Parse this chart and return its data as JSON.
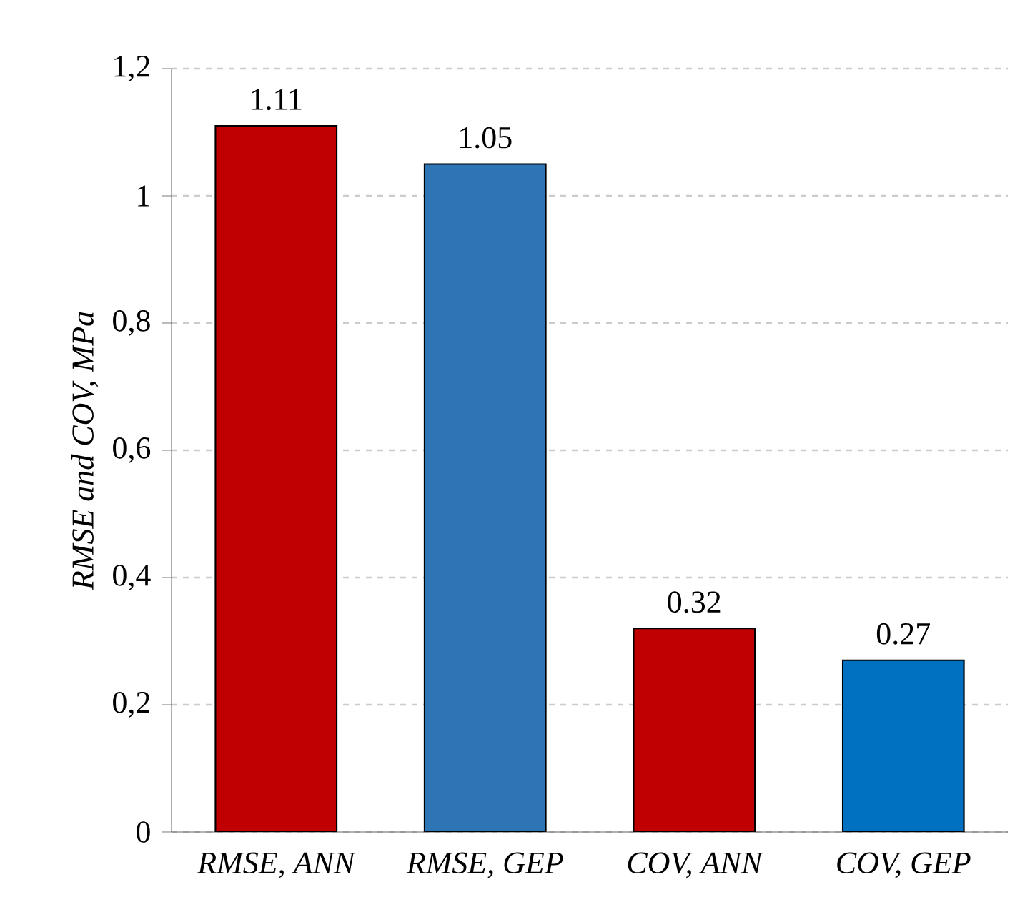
{
  "chart_data": {
    "type": "bar",
    "ylabel": "RMSE and COV, MPa",
    "categories": [
      "RMSE, ANN",
      "RMSE, GEP",
      "COV, ANN",
      "COV, GEP"
    ],
    "values": [
      1.11,
      1.05,
      0.32,
      0.27
    ],
    "colors": [
      "#c00000",
      "#2e75b6",
      "#c00000",
      "#0070c0"
    ],
    "ylim": [
      0,
      1.2
    ],
    "yticks": [
      0,
      {
        "value": 0.2,
        "label": "0,2"
      },
      {
        "value": 0.4,
        "label": "0,4"
      },
      {
        "value": 0.6,
        "label": "0,6"
      },
      {
        "value": 0.8,
        "label": "0,8"
      },
      1,
      {
        "value": 1.2,
        "label": "1,2"
      }
    ],
    "grid": "y",
    "data_labels": true
  }
}
